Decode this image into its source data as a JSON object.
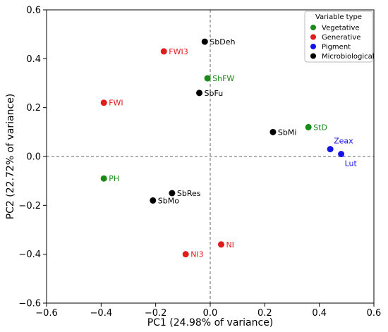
{
  "chart_data": {
    "type": "scatter",
    "xlabel": "PC1 (24.98% of variance)",
    "ylabel": "PC2 (22.72% of variance)",
    "xlim": [
      -0.6,
      0.6
    ],
    "ylim": [
      -0.6,
      0.6
    ],
    "xticks": [
      "−0.6",
      "−0.4",
      "−0.2",
      "0.0",
      "0.2",
      "0.4",
      "0.6"
    ],
    "yticks": [
      "−0.6",
      "−0.4",
      "−0.2",
      "0.0",
      "0.2",
      "0.4",
      "0.6"
    ],
    "reference_lines": {
      "x": 0,
      "y": 0,
      "style": "dashed"
    },
    "grid": false,
    "legend": {
      "title": "Variable type",
      "placement": "top-right",
      "entries": [
        {
          "name": "Vegetative",
          "color": "#1a8a1a"
        },
        {
          "name": "Generative",
          "color": "#e31a1c"
        },
        {
          "name": "Pigment",
          "color": "#1414e6"
        },
        {
          "name": "Microbiological",
          "color": "#000000"
        }
      ]
    },
    "series": [
      {
        "name": "Vegetative",
        "color": "#1a8a1a",
        "points": [
          {
            "label": "ShFW",
            "x": -0.01,
            "y": 0.32,
            "label_pos": "right"
          },
          {
            "label": "StD",
            "x": 0.36,
            "y": 0.12,
            "label_pos": "right"
          },
          {
            "label": "PH",
            "x": -0.39,
            "y": -0.09,
            "label_pos": "right"
          }
        ]
      },
      {
        "name": "Generative",
        "color": "#e31a1c",
        "points": [
          {
            "label": "FWI3",
            "x": -0.17,
            "y": 0.43,
            "label_pos": "right"
          },
          {
            "label": "FWI",
            "x": -0.39,
            "y": 0.22,
            "label_pos": "right"
          },
          {
            "label": "NI",
            "x": 0.04,
            "y": -0.36,
            "label_pos": "right"
          },
          {
            "label": "NI3",
            "x": -0.09,
            "y": -0.4,
            "label_pos": "right"
          }
        ]
      },
      {
        "name": "Pigment",
        "color": "#1414e6",
        "points": [
          {
            "label": "Zeax",
            "x": 0.44,
            "y": 0.03,
            "label_pos": "above-right"
          },
          {
            "label": "Lut",
            "x": 0.48,
            "y": 0.01,
            "label_pos": "below-right"
          }
        ]
      },
      {
        "name": "Microbiological",
        "color": "#000000",
        "points": [
          {
            "label": "SbDeh",
            "x": -0.02,
            "y": 0.47,
            "label_pos": "right"
          },
          {
            "label": "SbFu",
            "x": -0.04,
            "y": 0.26,
            "label_pos": "right"
          },
          {
            "label": "SbMi",
            "x": 0.23,
            "y": 0.1,
            "label_pos": "right"
          },
          {
            "label": "SbRes",
            "x": -0.14,
            "y": -0.15,
            "label_pos": "right"
          },
          {
            "label": "SbMo",
            "x": -0.21,
            "y": -0.18,
            "label_pos": "right"
          }
        ]
      }
    ]
  }
}
